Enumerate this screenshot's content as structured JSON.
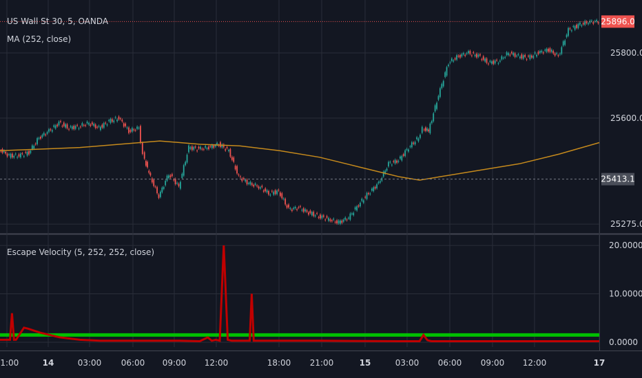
{
  "symbol_title": "US Wall St 30, 5, OANDA",
  "ma_title": "MA (252, close)",
  "indicator_title": "Escape Velocity (5, 252, 252, close)",
  "colors": {
    "background": "#131722",
    "grid": "#2a2e39",
    "up": "#26a69a",
    "down": "#ef5350",
    "ma": "#c68a1c",
    "last_price_bg": "#ef5350",
    "cross_price_bg": "#4a4e59",
    "green_line": "#00c000",
    "red_line": "#c00000"
  },
  "price_axis": {
    "ticks": [
      "25800.0",
      "25600.0",
      "25275.0"
    ],
    "last_price": "25896.0",
    "cross_price": "25413.1"
  },
  "indicator_axis": {
    "ticks": [
      "20.0000",
      "10.0000",
      "0.0000"
    ]
  },
  "time_axis": {
    "ticks": [
      "21:00",
      "14",
      "03:00",
      "06:00",
      "09:00",
      "12:00",
      "18:00",
      "21:00",
      "15",
      "03:00",
      "06:00",
      "09:00",
      "12:00",
      "17"
    ],
    "bold": [
      "14",
      "15",
      "17"
    ]
  },
  "chart_data": [
    {
      "type": "line",
      "name": "price",
      "x": [
        0,
        5,
        10,
        15,
        20,
        25,
        30,
        35,
        40,
        45,
        50,
        55,
        60,
        65,
        70,
        72,
        75,
        80,
        85,
        90,
        95,
        100,
        105,
        110,
        115,
        120,
        125,
        130,
        135,
        140,
        145,
        150,
        155,
        160,
        165,
        170,
        175,
        180,
        185,
        190,
        195,
        200,
        205,
        210,
        212,
        215,
        220,
        225,
        230,
        235,
        240,
        245,
        250,
        255,
        260,
        265,
        270,
        275,
        280,
        285,
        290,
        295,
        300
      ],
      "y": [
        25505,
        25485,
        25485,
        25495,
        25540,
        25560,
        25585,
        25570,
        25575,
        25585,
        25570,
        25590,
        25600,
        25560,
        25570,
        25490,
        25430,
        25360,
        25430,
        25390,
        25510,
        25505,
        25510,
        25520,
        25500,
        25420,
        25400,
        25390,
        25370,
        25375,
        25320,
        25325,
        25310,
        25300,
        25290,
        25280,
        25295,
        25335,
        25370,
        25400,
        25460,
        25470,
        25510,
        25540,
        25570,
        25560,
        25670,
        25770,
        25790,
        25800,
        25790,
        25770,
        25775,
        25800,
        25790,
        25785,
        25800,
        25810,
        25790,
        25870,
        25885,
        25895,
        25896
      ],
      "ylim": [
        25250,
        25920
      ]
    },
    {
      "type": "line",
      "name": "MA",
      "x": [
        0,
        20,
        40,
        60,
        80,
        100,
        120,
        140,
        160,
        180,
        200,
        210,
        220,
        240,
        260,
        280,
        300
      ],
      "y": [
        25500,
        25505,
        25510,
        25520,
        25530,
        25520,
        25515,
        25500,
        25480,
        25450,
        25420,
        25410,
        25420,
        25440,
        25460,
        25490,
        25525
      ]
    },
    {
      "type": "line",
      "name": "",
      "x": [
        0,
        300
      ],
      "y": [
        1.5,
        1.5
      ],
      "ylim": [
        -1,
        22
      ]
    },
    {
      "type": "line",
      "name": "",
      "x": [
        0,
        5,
        6,
        7,
        8,
        12,
        14,
        20,
        30,
        40,
        50,
        70,
        80,
        90,
        100,
        104,
        106,
        108,
        110,
        112,
        114,
        116,
        118,
        120,
        125,
        126,
        127,
        128,
        130,
        140,
        150,
        160,
        200,
        210,
        212,
        214,
        216,
        230,
        260,
        300
      ],
      "y": [
        0.5,
        0.5,
        6,
        0.5,
        0.5,
        3,
        2.8,
        2,
        1,
        0.5,
        0.3,
        0.3,
        0.3,
        0.3,
        0.2,
        1,
        0.3,
        0.5,
        0.3,
        20,
        0.5,
        0.3,
        0.3,
        0.3,
        0.3,
        10,
        0.3,
        0.3,
        0.3,
        0.3,
        0.3,
        0.3,
        0.2,
        0.2,
        1.5,
        0.4,
        0.2,
        0.2,
        0.2,
        0.2
      ],
      "ylim": [
        -1,
        22
      ]
    }
  ]
}
